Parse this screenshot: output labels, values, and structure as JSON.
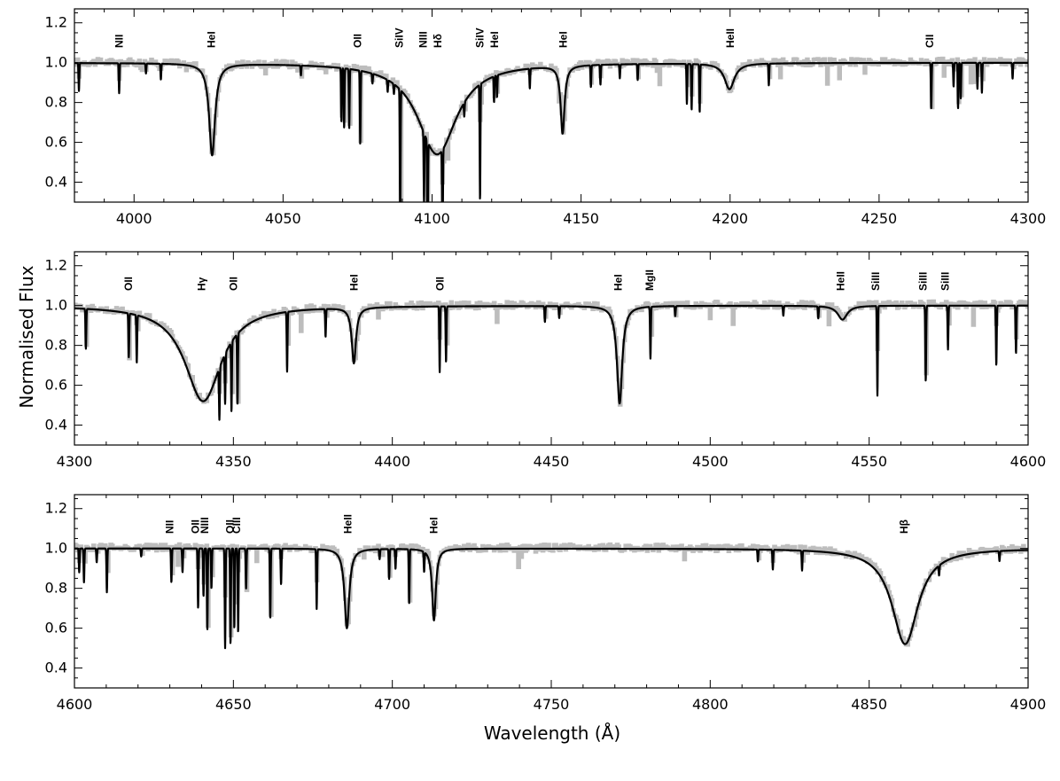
{
  "chart_data": {
    "type": "line",
    "ylabel": "Normalised Flux",
    "xlabel": "Wavelength (Å)",
    "colors": {
      "observed": "#bdbdbd",
      "model": "#000000"
    },
    "series_roles": [
      "observed spectrum (grey)",
      "model spectrum (black)"
    ],
    "grid": false,
    "panels": [
      {
        "xlim": [
          3980,
          4300
        ],
        "ylim": [
          0.3,
          1.27
        ],
        "xticks": [
          4000,
          4050,
          4100,
          4150,
          4200,
          4250,
          4300
        ],
        "yticks": [
          0.4,
          0.6,
          0.8,
          1.0,
          1.2
        ],
        "broad_lines": [
          {
            "x": 4026.2,
            "depth": 0.46,
            "width": 1.2
          },
          {
            "x": 4101.7,
            "depth": 0.46,
            "width": 8
          },
          {
            "x": 4143.8,
            "depth": 0.34,
            "width": 0.8
          },
          {
            "x": 4199.8,
            "depth": 0.13,
            "width": 2
          }
        ],
        "narrow_lines": [
          [
            3981.5,
            0.14
          ],
          [
            3995,
            0.15
          ],
          [
            4004,
            0.05
          ],
          [
            4009,
            0.08
          ],
          [
            4056,
            0.05
          ],
          [
            4069.6,
            0.27
          ],
          [
            4070.5,
            0.3
          ],
          [
            4072.2,
            0.3
          ],
          [
            4075.9,
            0.37
          ],
          [
            4080,
            0.05
          ],
          [
            4085.1,
            0.06
          ],
          [
            4087.2,
            0.05
          ],
          [
            4089.3,
            0.65
          ],
          [
            4097.3,
            0.35
          ],
          [
            4098.5,
            0.69
          ],
          [
            4103.5,
            0.59
          ],
          [
            4110.8,
            0.07
          ],
          [
            4116.1,
            0.58
          ],
          [
            4120.8,
            0.13
          ],
          [
            4121.8,
            0.11
          ],
          [
            4132.8,
            0.1
          ],
          [
            4153.3,
            0.11
          ],
          [
            4156.5,
            0.1
          ],
          [
            4163,
            0.07
          ],
          [
            4169,
            0.08
          ],
          [
            4185.5,
            0.2
          ],
          [
            4187.1,
            0.23
          ],
          [
            4189.8,
            0.24
          ],
          [
            4213,
            0.11
          ],
          [
            4267.5,
            0.23
          ],
          [
            4275,
            0.12
          ],
          [
            4276.5,
            0.23
          ],
          [
            4277.4,
            0.18
          ],
          [
            4283,
            0.13
          ],
          [
            4284.5,
            0.15
          ],
          [
            4294.8,
            0.08
          ]
        ],
        "labels": [
          {
            "x": 3995,
            "text": "NII"
          },
          {
            "x": 4026,
            "text": "HeI"
          },
          {
            "x": 4075,
            "text": "OII"
          },
          {
            "x": 4089,
            "text": "SiIV"
          },
          {
            "x": 4097,
            "text": "NIII"
          },
          {
            "x": 4102,
            "text": "Hδ"
          },
          {
            "x": 4116,
            "text": "SiIV"
          },
          {
            "x": 4121,
            "text": "HeI"
          },
          {
            "x": 4144,
            "text": "HeI"
          },
          {
            "x": 4200,
            "text": "HeII"
          },
          {
            "x": 4267,
            "text": "CII"
          }
        ]
      },
      {
        "xlim": [
          4300,
          4600
        ],
        "ylim": [
          0.3,
          1.27
        ],
        "xticks": [
          4300,
          4350,
          4400,
          4450,
          4500,
          4550,
          4600
        ],
        "yticks": [
          0.4,
          0.6,
          0.8,
          1.0,
          1.2
        ],
        "broad_lines": [
          {
            "x": 4340.5,
            "depth": 0.48,
            "width": 7
          },
          {
            "x": 4387.9,
            "depth": 0.28,
            "width": 0.8
          },
          {
            "x": 4471.5,
            "depth": 0.49,
            "width": 1
          },
          {
            "x": 4541.6,
            "depth": 0.07,
            "width": 1.8
          }
        ],
        "narrow_lines": [
          [
            4303.6,
            0.2
          ],
          [
            4317.1,
            0.22
          ],
          [
            4319.6,
            0.24
          ],
          [
            4345.6,
            0.26
          ],
          [
            4347.4,
            0.25
          ],
          [
            4349.4,
            0.35
          ],
          [
            4351.3,
            0.35
          ],
          [
            4366.9,
            0.3
          ],
          [
            4379,
            0.14
          ],
          [
            4414.9,
            0.33
          ],
          [
            4416.9,
            0.28
          ],
          [
            4448,
            0.08
          ],
          [
            4452.5,
            0.06
          ],
          [
            4481.2,
            0.26
          ],
          [
            4489,
            0.05
          ],
          [
            4523,
            0.05
          ],
          [
            4534,
            0.06
          ],
          [
            4552.6,
            0.45
          ],
          [
            4567.8,
            0.38
          ],
          [
            4574.8,
            0.22
          ],
          [
            4590,
            0.3
          ],
          [
            4596.2,
            0.24
          ]
        ],
        "labels": [
          {
            "x": 4317,
            "text": "OII"
          },
          {
            "x": 4340,
            "text": "Hγ"
          },
          {
            "x": 4350,
            "text": "OII"
          },
          {
            "x": 4388,
            "text": "HeI"
          },
          {
            "x": 4415,
            "text": "OII"
          },
          {
            "x": 4471,
            "text": "HeI"
          },
          {
            "x": 4481,
            "text": "MgII"
          },
          {
            "x": 4541,
            "text": "HeII"
          },
          {
            "x": 4552,
            "text": "SiIII"
          },
          {
            "x": 4567,
            "text": "SiIII"
          },
          {
            "x": 4574,
            "text": "SiIII"
          }
        ]
      },
      {
        "xlim": [
          4600,
          4900
        ],
        "ylim": [
          0.3,
          1.27
        ],
        "xticks": [
          4600,
          4650,
          4700,
          4750,
          4800,
          4850,
          4900
        ],
        "yticks": [
          0.4,
          0.6,
          0.8,
          1.0,
          1.2
        ],
        "broad_lines": [
          {
            "x": 4685.7,
            "depth": 0.4,
            "width": 0.9
          },
          {
            "x": 4713.1,
            "depth": 0.36,
            "width": 0.7
          },
          {
            "x": 4861.3,
            "depth": 0.48,
            "width": 5
          }
        ],
        "narrow_lines": [
          [
            4601.5,
            0.12
          ],
          [
            4603,
            0.17
          ],
          [
            4607,
            0.07
          ],
          [
            4610.2,
            0.22
          ],
          [
            4621,
            0.04
          ],
          [
            4630.5,
            0.17
          ],
          [
            4634,
            0.12
          ],
          [
            4638.9,
            0.3
          ],
          [
            4640.6,
            0.24
          ],
          [
            4641.8,
            0.41
          ],
          [
            4643.1,
            0.2
          ],
          [
            4647.4,
            0.5
          ],
          [
            4649.1,
            0.48
          ],
          [
            4650.3,
            0.4
          ],
          [
            4651.5,
            0.42
          ],
          [
            4654,
            0.2
          ],
          [
            4661.6,
            0.35
          ],
          [
            4665,
            0.18
          ],
          [
            4676.2,
            0.3
          ],
          [
            4696,
            0.05
          ],
          [
            4699,
            0.15
          ],
          [
            4701,
            0.1
          ],
          [
            4705.3,
            0.27
          ],
          [
            4710,
            0.1
          ],
          [
            4815,
            0.06
          ],
          [
            4819.7,
            0.1
          ],
          [
            4828.9,
            0.1
          ],
          [
            4872,
            0.05
          ],
          [
            4891,
            0.05
          ]
        ],
        "labels": [
          {
            "x": 4630,
            "text": "NII"
          },
          {
            "x": 4638,
            "text": "OII"
          },
          {
            "x": 4641,
            "text": "NIII"
          },
          {
            "x": 4649,
            "text": "OII"
          },
          {
            "x": 4651,
            "text": "CIII"
          },
          {
            "x": 4686,
            "text": "HeII"
          },
          {
            "x": 4713,
            "text": "HeI"
          },
          {
            "x": 4861,
            "text": "Hβ"
          }
        ]
      }
    ]
  }
}
